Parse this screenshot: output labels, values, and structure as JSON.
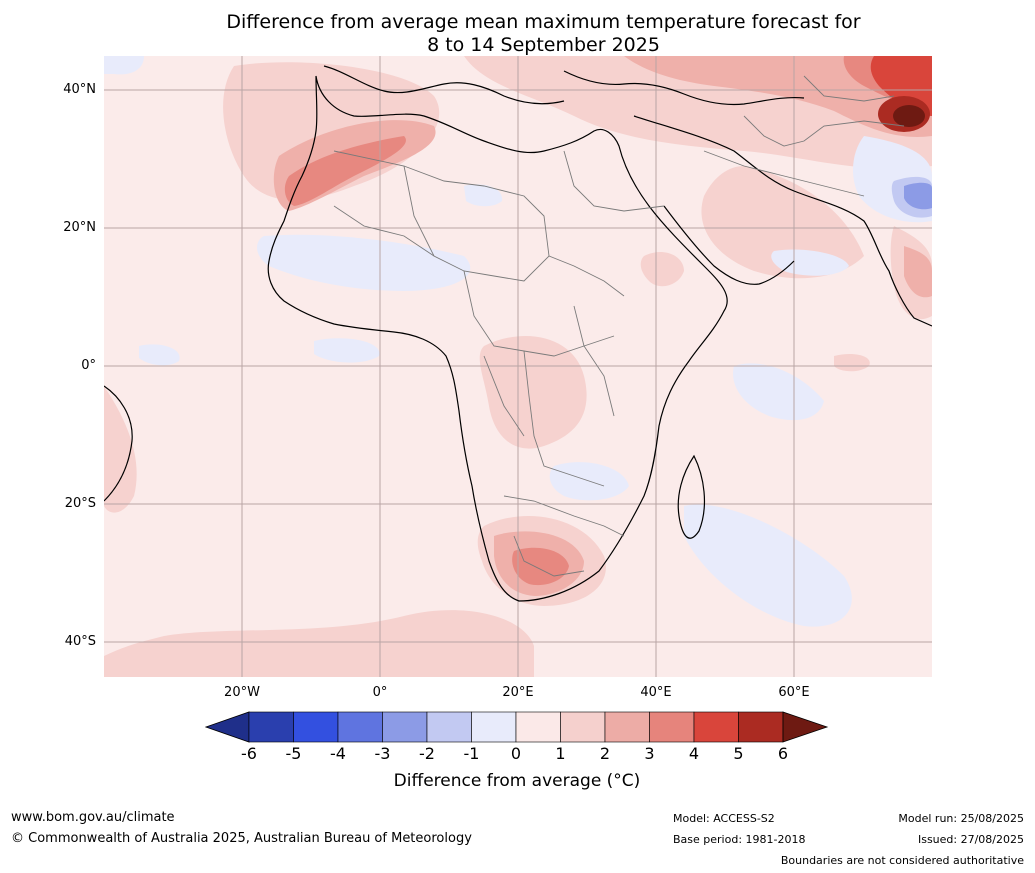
{
  "title_line1": "Difference from average mean maximum temperature forecast for",
  "title_line2": "8 to 14 September 2025",
  "lat_labels": [
    "40°N",
    "20°N",
    "0°",
    "20°S",
    "40°S"
  ],
  "lon_labels": [
    "20°W",
    "0°",
    "20°E",
    "40°E",
    "60°E"
  ],
  "colorbar": {
    "ticks": [
      "-6",
      "-5",
      "-4",
      "-3",
      "-2",
      "-1",
      "0",
      "1",
      "2",
      "3",
      "4",
      "5",
      "6"
    ],
    "label": "Difference from average (°C)",
    "colors": [
      "#1f2f8a",
      "#2a3fae",
      "#3350e0",
      "#5f74e0",
      "#8c9be6",
      "#c2c9f2",
      "#e8ebfb",
      "#fbe9e8",
      "#f5d0cd",
      "#edaca6",
      "#e6847c",
      "#d9453b",
      "#ab2b22",
      "#6e1a12"
    ]
  },
  "footer": {
    "website": "www.bom.gov.au/climate",
    "copyright": "© Commonwealth of Australia 2025, Australian Bureau of Meteorology",
    "model": "Model: ACCESS-S2",
    "base_period": "Base period: 1981-2018",
    "model_run": "Model run: 25/08/2025",
    "issued": "Issued: 27/08/2025",
    "disclaimer": "Boundaries are not considered authoritative"
  }
}
